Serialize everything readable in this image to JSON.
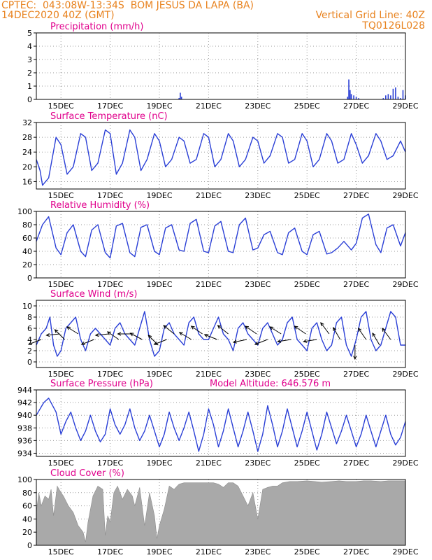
{
  "header": {
    "line1_left": "CPTEC:  043:08W-13:34S  BOM JESUS DA LAPA (BA)",
    "line2_left": "14DEC2020 40Z (GMT)",
    "line2_right": "Vertical Grid Line: 40Z",
    "line3_right": "TQ0126L028"
  },
  "colors": {
    "header": "#e8821e",
    "title": "#e0008c",
    "line": "#2a3fd6",
    "cloud": "#a9a9a9",
    "bar": "#2a3fd6",
    "arrow": "#000000"
  },
  "chart_data": [
    {
      "name": "precipitation",
      "type": "bar",
      "title": "Precipitation (mm/h)",
      "x_ticks": [
        "15DEC",
        "17DEC",
        "19DEC",
        "21DEC",
        "23DEC",
        "25DEC",
        "27DEC",
        "29DEC"
      ],
      "x_tick_days": [
        1,
        3,
        5,
        7,
        9,
        11,
        13,
        15
      ],
      "x_range_days": [
        0,
        15
      ],
      "ylim": [
        0,
        5
      ],
      "y_ticks": [
        0,
        1,
        2,
        3,
        4,
        5
      ],
      "x_days": [
        5.8,
        5.85,
        5.9,
        12.65,
        12.7,
        12.75,
        12.8,
        12.9,
        13.0,
        13.1,
        14.1,
        14.2,
        14.3,
        14.4,
        14.5,
        14.6,
        14.7,
        14.8,
        14.9,
        15.0
      ],
      "values": [
        0.1,
        0.5,
        0.2,
        0.2,
        1.5,
        0.7,
        0.4,
        0.3,
        0.2,
        0.1,
        0.1,
        0.3,
        0.4,
        0.3,
        0.8,
        0.9,
        0.2,
        0.1,
        0.7,
        0.3
      ]
    },
    {
      "name": "surface-temperature",
      "type": "line",
      "title": "Surface Temperature (nC)",
      "x_ticks": [
        "15DEC",
        "17DEC",
        "19DEC",
        "21DEC",
        "23DEC",
        "25DEC",
        "27DEC",
        "29DEC"
      ],
      "x_tick_days": [
        1,
        3,
        5,
        7,
        9,
        11,
        13,
        15
      ],
      "x_range_days": [
        0,
        15
      ],
      "ylim": [
        14,
        32
      ],
      "y_ticks": [
        16,
        20,
        24,
        28,
        32
      ],
      "x_days": [
        0.0,
        0.15,
        0.25,
        0.5,
        0.8,
        1.0,
        1.25,
        1.5,
        1.8,
        2.0,
        2.25,
        2.5,
        2.8,
        3.0,
        3.25,
        3.5,
        3.8,
        4.0,
        4.25,
        4.5,
        4.8,
        5.0,
        5.25,
        5.5,
        5.8,
        6.0,
        6.25,
        6.5,
        6.8,
        7.0,
        7.25,
        7.5,
        7.8,
        8.0,
        8.25,
        8.5,
        8.8,
        9.0,
        9.25,
        9.5,
        9.8,
        10.0,
        10.25,
        10.5,
        10.8,
        11.0,
        11.25,
        11.5,
        11.8,
        12.0,
        12.25,
        12.5,
        12.8,
        13.0,
        13.25,
        13.5,
        13.8,
        14.0,
        14.25,
        14.5,
        14.8,
        15.0
      ],
      "y": [
        22,
        19,
        15,
        17,
        28,
        26,
        18,
        20,
        29,
        28,
        19,
        21,
        30,
        29,
        18,
        21,
        30,
        28,
        19,
        22,
        29,
        27,
        20,
        22,
        28,
        27,
        21,
        22,
        29,
        28,
        20,
        22,
        29,
        27,
        20,
        22,
        28,
        27,
        21,
        23,
        29,
        28,
        21,
        22,
        29,
        27,
        20,
        22,
        29,
        27,
        21,
        22,
        29,
        26,
        21,
        23,
        29,
        27,
        22,
        23,
        27,
        24
      ]
    },
    {
      "name": "relative-humidity",
      "type": "line",
      "title": "Relative Humidity (%)",
      "x_ticks": [
        "15DEC",
        "17DEC",
        "19DEC",
        "21DEC",
        "23DEC",
        "25DEC",
        "27DEC",
        "29DEC"
      ],
      "x_tick_days": [
        1,
        3,
        5,
        7,
        9,
        11,
        13,
        15
      ],
      "x_range_days": [
        0,
        15
      ],
      "ylim": [
        0,
        100
      ],
      "y_ticks": [
        0,
        20,
        40,
        60,
        80,
        100
      ],
      "x_days": [
        0.0,
        0.25,
        0.5,
        0.8,
        1.0,
        1.25,
        1.5,
        1.8,
        2.0,
        2.25,
        2.5,
        2.8,
        3.0,
        3.25,
        3.5,
        3.8,
        4.0,
        4.25,
        4.5,
        4.8,
        5.0,
        5.25,
        5.5,
        5.8,
        6.0,
        6.25,
        6.5,
        6.8,
        7.0,
        7.25,
        7.5,
        7.8,
        8.0,
        8.25,
        8.5,
        8.8,
        9.0,
        9.25,
        9.5,
        9.8,
        10.0,
        10.25,
        10.5,
        10.8,
        11.0,
        11.25,
        11.5,
        11.8,
        12.0,
        12.25,
        12.5,
        12.8,
        13.0,
        13.25,
        13.5,
        13.8,
        14.0,
        14.25,
        14.5,
        14.8,
        15.0
      ],
      "y": [
        55,
        80,
        92,
        45,
        35,
        68,
        80,
        40,
        32,
        72,
        80,
        38,
        30,
        78,
        82,
        38,
        32,
        76,
        80,
        40,
        35,
        75,
        80,
        42,
        40,
        82,
        88,
        40,
        38,
        78,
        85,
        40,
        38,
        80,
        90,
        42,
        45,
        65,
        70,
        38,
        35,
        68,
        75,
        40,
        35,
        65,
        70,
        36,
        38,
        45,
        55,
        42,
        52,
        90,
        96,
        50,
        38,
        75,
        80,
        48,
        68
      ]
    },
    {
      "name": "surface-wind",
      "type": "line",
      "title": "Surface Wind (m/s)",
      "x_ticks": [
        "15DEC",
        "17DEC",
        "19DEC",
        "21DEC",
        "23DEC",
        "25DEC",
        "27DEC",
        "29DEC"
      ],
      "x_tick_days": [
        1,
        3,
        5,
        7,
        9,
        11,
        13,
        15
      ],
      "x_range_days": [
        0,
        15
      ],
      "ylim": [
        -1,
        11
      ],
      "y_ticks": [
        0,
        2,
        4,
        6,
        8,
        10
      ],
      "x_days": [
        0.0,
        0.2,
        0.4,
        0.55,
        0.7,
        0.85,
        1.0,
        1.2,
        1.4,
        1.6,
        1.8,
        2.0,
        2.2,
        2.4,
        2.6,
        2.8,
        3.0,
        3.2,
        3.4,
        3.6,
        3.8,
        4.0,
        4.2,
        4.4,
        4.6,
        4.8,
        5.0,
        5.2,
        5.4,
        5.6,
        5.8,
        6.0,
        6.2,
        6.4,
        6.6,
        6.8,
        7.0,
        7.2,
        7.4,
        7.6,
        7.8,
        8.0,
        8.2,
        8.4,
        8.6,
        8.8,
        9.0,
        9.2,
        9.4,
        9.6,
        9.8,
        10.0,
        10.2,
        10.4,
        10.6,
        10.8,
        11.0,
        11.2,
        11.4,
        11.6,
        11.8,
        12.0,
        12.2,
        12.4,
        12.6,
        12.8,
        13.0,
        13.2,
        13.4,
        13.6,
        13.8,
        14.0,
        14.2,
        14.4,
        14.6,
        14.8,
        15.0
      ],
      "y": [
        3,
        5,
        6,
        8,
        3,
        1,
        2,
        6,
        7,
        8,
        4,
        2,
        5,
        6,
        5,
        4,
        3,
        6,
        7,
        5,
        4,
        3,
        6,
        9,
        4,
        1,
        2,
        6,
        7,
        5,
        4,
        3,
        7,
        8,
        5,
        4,
        4,
        6,
        8,
        5,
        4,
        2,
        6,
        7,
        5,
        4,
        3,
        6,
        7,
        5,
        3,
        4,
        7,
        8,
        4,
        3,
        2,
        6,
        7,
        4,
        2,
        3,
        7,
        8,
        3,
        1,
        4,
        8,
        9,
        4,
        2,
        3,
        6,
        9,
        8,
        3,
        3
      ],
      "arrows": [
        {
          "day": 0.2,
          "speed": 4,
          "dx": 0.9,
          "dy": 0.35
        },
        {
          "day": 0.95,
          "speed": 5,
          "dx": 0.95,
          "dy": 0.1
        },
        {
          "day": 1.15,
          "speed": 4,
          "dx": 0.7,
          "dy": -0.7
        },
        {
          "day": 1.7,
          "speed": 5,
          "dx": 0.8,
          "dy": -0.5
        },
        {
          "day": 2.35,
          "speed": 4,
          "dx": 0.9,
          "dy": 0.35
        },
        {
          "day": 2.95,
          "speed": 5,
          "dx": 0.95,
          "dy": 0.1
        },
        {
          "day": 3.35,
          "speed": 4,
          "dx": 0.8,
          "dy": -0.55
        },
        {
          "day": 3.85,
          "speed": 5,
          "dx": 0.95,
          "dy": 0.0
        },
        {
          "day": 4.3,
          "speed": 4,
          "dx": 0.85,
          "dy": -0.45
        },
        {
          "day": 4.95,
          "speed": 3,
          "dx": 0.7,
          "dy": -0.7
        },
        {
          "day": 5.3,
          "speed": 4,
          "dx": 0.9,
          "dy": 0.35
        },
        {
          "day": 5.6,
          "speed": 5,
          "dx": 0.75,
          "dy": -0.6
        },
        {
          "day": 6.3,
          "speed": 4,
          "dx": 0.85,
          "dy": -0.5
        },
        {
          "day": 6.75,
          "speed": 5,
          "dx": 0.8,
          "dy": -0.55
        },
        {
          "day": 7.35,
          "speed": 4,
          "dx": 0.9,
          "dy": -0.35
        },
        {
          "day": 7.8,
          "speed": 5,
          "dx": 0.75,
          "dy": -0.6
        },
        {
          "day": 8.55,
          "speed": 4,
          "dx": 0.95,
          "dy": 0.2
        },
        {
          "day": 8.95,
          "speed": 5,
          "dx": 0.8,
          "dy": -0.55
        },
        {
          "day": 9.4,
          "speed": 4,
          "dx": 0.9,
          "dy": 0.35
        },
        {
          "day": 9.95,
          "speed": 5,
          "dx": 0.8,
          "dy": -0.5
        },
        {
          "day": 10.35,
          "speed": 4,
          "dx": 0.95,
          "dy": 0.15
        },
        {
          "day": 10.95,
          "speed": 5,
          "dx": 0.8,
          "dy": -0.55
        },
        {
          "day": 11.4,
          "speed": 4,
          "dx": 0.95,
          "dy": 0.15
        },
        {
          "day": 11.9,
          "speed": 5,
          "dx": 0.6,
          "dy": -0.8
        },
        {
          "day": 12.35,
          "speed": 4,
          "dx": 0.5,
          "dy": -0.85
        },
        {
          "day": 12.95,
          "speed": 3,
          "dx": 0.0,
          "dy": 1.0
        },
        {
          "day": 13.4,
          "speed": 4,
          "dx": 0.55,
          "dy": -0.8
        },
        {
          "day": 13.95,
          "speed": 3,
          "dx": 0.5,
          "dy": -0.85
        },
        {
          "day": 14.4,
          "speed": 4,
          "dx": 0.6,
          "dy": -0.8
        }
      ]
    },
    {
      "name": "surface-pressure",
      "type": "line",
      "title": "Surface Pressure (hPa)",
      "subtitle": "Model Altitude: 646.576 m",
      "x_ticks": [
        "15DEC",
        "17DEC",
        "19DEC",
        "21DEC",
        "23DEC",
        "25DEC",
        "27DEC",
        "29DEC"
      ],
      "x_tick_days": [
        1,
        3,
        5,
        7,
        9,
        11,
        13,
        15
      ],
      "x_range_days": [
        0,
        15
      ],
      "ylim": [
        933.5,
        944
      ],
      "y_ticks": [
        934,
        936,
        938,
        940,
        942,
        944
      ],
      "x_days": [
        0.0,
        0.3,
        0.5,
        0.8,
        1.0,
        1.2,
        1.4,
        1.6,
        1.8,
        2.0,
        2.2,
        2.4,
        2.6,
        2.8,
        3.0,
        3.2,
        3.4,
        3.6,
        3.8,
        4.0,
        4.2,
        4.4,
        4.6,
        4.8,
        5.0,
        5.2,
        5.4,
        5.6,
        5.8,
        6.0,
        6.2,
        6.4,
        6.6,
        6.8,
        7.0,
        7.2,
        7.4,
        7.6,
        7.8,
        8.0,
        8.2,
        8.4,
        8.6,
        8.8,
        9.0,
        9.2,
        9.4,
        9.6,
        9.8,
        10.0,
        10.2,
        10.4,
        10.6,
        10.8,
        11.0,
        11.2,
        11.4,
        11.6,
        11.8,
        12.0,
        12.2,
        12.4,
        12.6,
        12.8,
        13.0,
        13.2,
        13.4,
        13.6,
        13.8,
        14.0,
        14.2,
        14.4,
        14.6,
        14.8,
        15.0
      ],
      "y": [
        940,
        942,
        942.7,
        940.5,
        937,
        939,
        940.5,
        938,
        936,
        937.5,
        940,
        937.5,
        935.8,
        937,
        941,
        938.5,
        937,
        938.5,
        941,
        938,
        936,
        937.5,
        940,
        937.5,
        935,
        937,
        940.5,
        938,
        936,
        938,
        940.5,
        937.5,
        934.3,
        937,
        941,
        938.5,
        935,
        937.5,
        941,
        938,
        935,
        937.5,
        940.5,
        937.5,
        934.3,
        937,
        941.5,
        938.5,
        935,
        937.5,
        941,
        938,
        935,
        937.5,
        940.5,
        937.5,
        934.5,
        937,
        940.5,
        938,
        935.5,
        937.5,
        940,
        937.5,
        935,
        937,
        940,
        937.5,
        935,
        937.5,
        940,
        937,
        935.3,
        936.5,
        939
      ]
    },
    {
      "name": "cloud-cover",
      "type": "area",
      "title": "Cloud Cover (%)",
      "x_ticks": [
        "15DEC",
        "17DEC",
        "19DEC",
        "21DEC",
        "23DEC",
        "25DEC",
        "27DEC",
        "29DEC"
      ],
      "x_tick_days": [
        1,
        3,
        5,
        7,
        9,
        11,
        13,
        15
      ],
      "x_range_days": [
        0,
        15
      ],
      "ylim": [
        0,
        100
      ],
      "y_ticks": [
        0,
        20,
        40,
        60,
        80,
        100
      ],
      "x_days": [
        0.0,
        0.1,
        0.2,
        0.35,
        0.5,
        0.6,
        0.7,
        0.85,
        1.0,
        1.1,
        1.3,
        1.5,
        1.7,
        1.9,
        2.0,
        2.1,
        2.3,
        2.5,
        2.7,
        2.8,
        2.9,
        3.0,
        3.15,
        3.3,
        3.5,
        3.7,
        3.9,
        4.0,
        4.2,
        4.4,
        4.6,
        4.8,
        4.9,
        5.0,
        5.2,
        5.4,
        5.6,
        5.8,
        6.0,
        6.2,
        6.4,
        6.6,
        6.8,
        7.0,
        7.2,
        7.4,
        7.6,
        7.8,
        8.0,
        8.2,
        8.4,
        8.6,
        8.8,
        9.0,
        9.2,
        9.4,
        9.6,
        9.8,
        10.0,
        10.3,
        10.6,
        11.0,
        11.3,
        11.6,
        12.0,
        12.3,
        12.6,
        13.0,
        13.3,
        13.6,
        14.0,
        14.3,
        14.6,
        15.0
      ],
      "y": [
        50,
        80,
        60,
        75,
        70,
        85,
        45,
        90,
        80,
        75,
        60,
        50,
        30,
        20,
        5,
        35,
        75,
        90,
        85,
        15,
        45,
        35,
        80,
        90,
        70,
        85,
        75,
        60,
        88,
        30,
        80,
        45,
        10,
        30,
        55,
        90,
        85,
        93,
        95,
        95,
        95,
        95,
        95,
        95,
        95,
        93,
        88,
        95,
        95,
        90,
        75,
        60,
        80,
        40,
        85,
        88,
        90,
        90,
        95,
        97,
        97,
        98,
        97,
        96,
        97,
        98,
        97,
        97,
        98,
        98,
        97,
        98,
        98,
        98
      ]
    }
  ]
}
